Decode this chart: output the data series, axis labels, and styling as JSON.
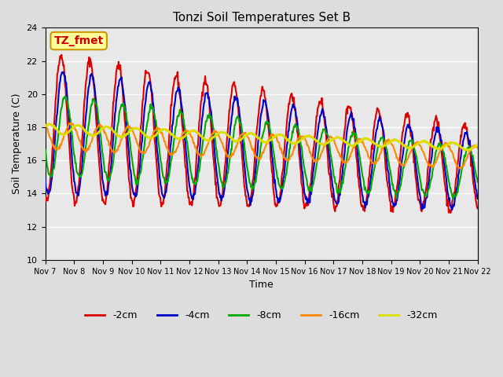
{
  "title": "Tonzi Soil Temperatures Set B",
  "xlabel": "Time",
  "ylabel": "Soil Temperature (C)",
  "ylim": [
    10,
    24
  ],
  "yticks": [
    10,
    12,
    14,
    16,
    18,
    20,
    22,
    24
  ],
  "annotation_label": "TZ_fmet",
  "annotation_color": "#cc0000",
  "annotation_bg": "#ffff99",
  "annotation_border": "#cc9900",
  "bg_color": "#e8e8e8",
  "plot_bg": "#f0f0f0",
  "series": {
    "-2cm": {
      "color": "#dd0000",
      "lw": 1.5
    },
    "-4cm": {
      "color": "#0000cc",
      "lw": 1.5
    },
    "-8cm": {
      "color": "#00aa00",
      "lw": 1.5
    },
    "-16cm": {
      "color": "#ff8800",
      "lw": 1.5
    },
    "-32cm": {
      "color": "#dddd00",
      "lw": 2.0
    }
  },
  "xtick_labels": [
    "Nov 7",
    "Nov 8",
    "Nov 9",
    "Nov 10",
    "Nov 11",
    "Nov 12",
    "Nov 13",
    "Nov 14",
    "Nov 15",
    "Nov 16",
    "Nov 17",
    "Nov 18",
    "Nov 19",
    "Nov 20",
    "Nov 21",
    "Nov 22"
  ],
  "legend_entries": [
    "-2cm",
    "-4cm",
    "-8cm",
    "-16cm",
    "-32cm"
  ],
  "legend_colors": [
    "#dd0000",
    "#0000cc",
    "#00aa00",
    "#ff8800",
    "#dddd00"
  ]
}
